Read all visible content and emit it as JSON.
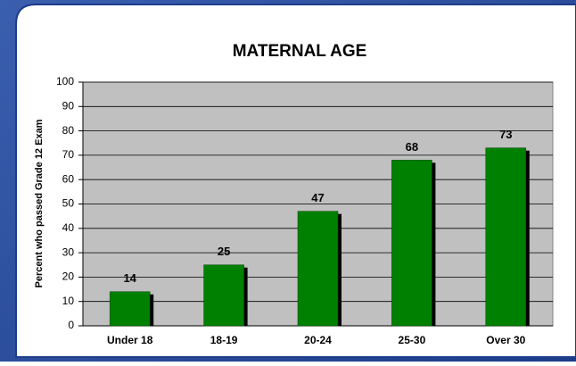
{
  "chart_data": {
    "type": "bar",
    "title": "MATERNAL AGE",
    "y_label": "Percent who passed Grade 12 Exam",
    "categories": [
      "Under 18",
      "18-19",
      "20-24",
      "25-30",
      "Over 30"
    ],
    "values": [
      14,
      25,
      47,
      68,
      73
    ],
    "color": "#008000",
    "ylim": [
      0,
      100
    ],
    "yticks": [
      0,
      10,
      20,
      30,
      40,
      50,
      60,
      70,
      80,
      90,
      100
    ],
    "grid": true
  }
}
